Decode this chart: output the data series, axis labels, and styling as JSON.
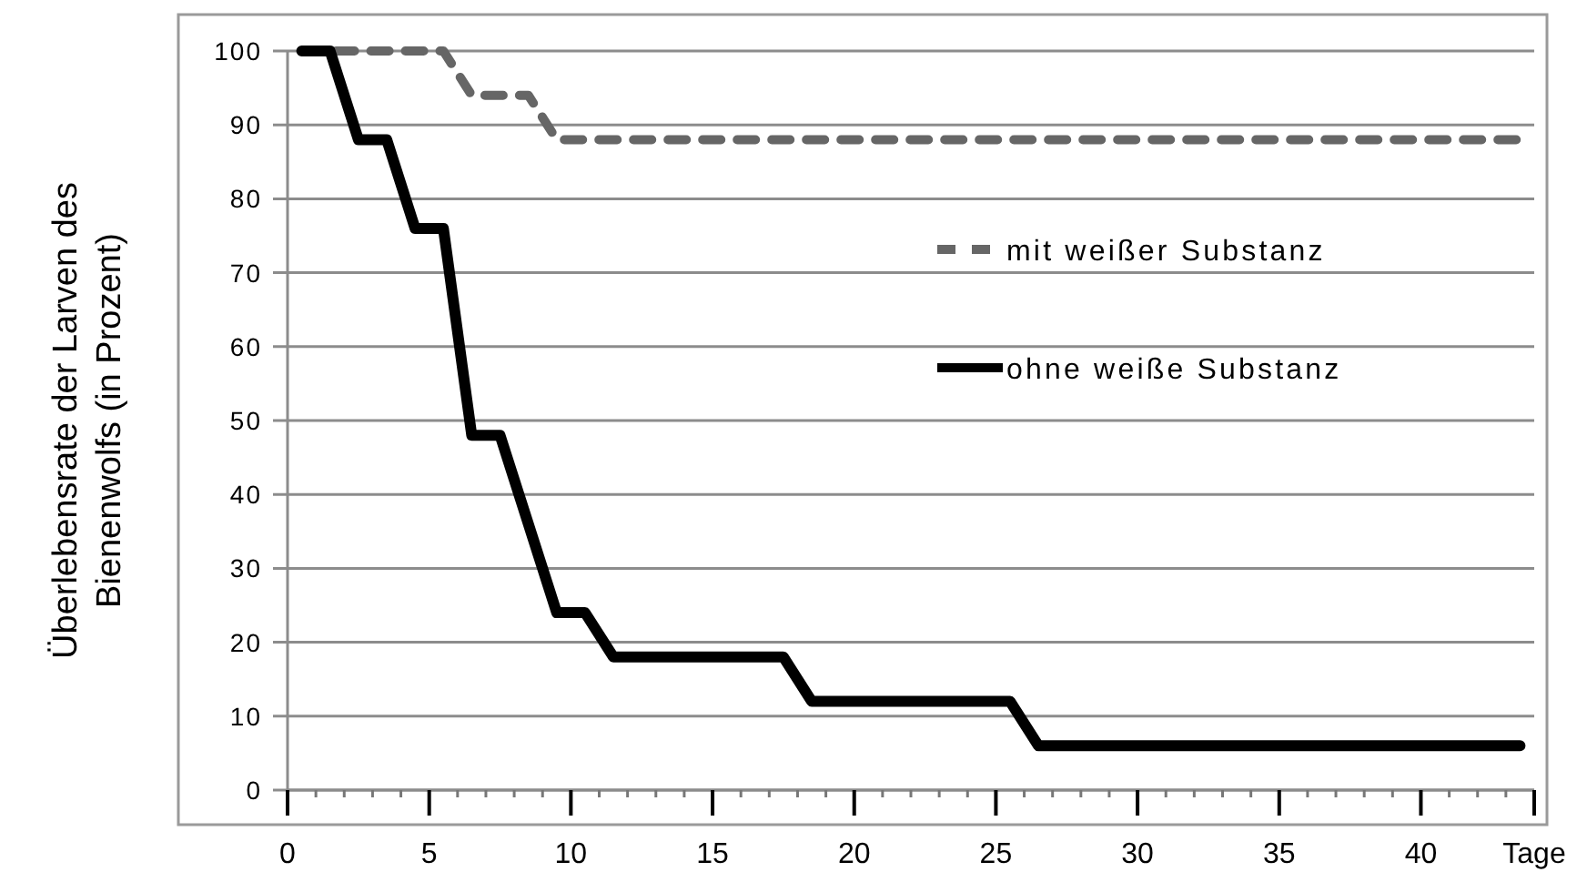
{
  "chart_data": {
    "type": "line",
    "ylabel": "Überlebensrate der Larven des\nBienenwolfs (in Prozent)",
    "xlim": [
      0,
      44
    ],
    "xticks": [
      0,
      {
        "value": 1,
        "label": null
      },
      {
        "value": 2,
        "label": null
      },
      {
        "value": 3,
        "label": null
      },
      {
        "value": 4,
        "label": null
      },
      5,
      {
        "value": 6,
        "label": null
      },
      {
        "value": 7,
        "label": null
      },
      {
        "value": 8,
        "label": null
      },
      {
        "value": 9,
        "label": null
      },
      10,
      {
        "value": 11,
        "label": null
      },
      {
        "value": 12,
        "label": null
      },
      {
        "value": 13,
        "label": null
      },
      {
        "value": 14,
        "label": null
      },
      15,
      {
        "value": 16,
        "label": null
      },
      {
        "value": 17,
        "label": null
      },
      {
        "value": 18,
        "label": null
      },
      {
        "value": 19,
        "label": null
      },
      20,
      {
        "value": 21,
        "label": null
      },
      {
        "value": 22,
        "label": null
      },
      {
        "value": 23,
        "label": null
      },
      {
        "value": 24,
        "label": null
      },
      25,
      {
        "value": 26,
        "label": null
      },
      {
        "value": 27,
        "label": null
      },
      {
        "value": 28,
        "label": null
      },
      {
        "value": 29,
        "label": null
      },
      30,
      {
        "value": 31,
        "label": null
      },
      {
        "value": 32,
        "label": null
      },
      {
        "value": 33,
        "label": null
      },
      {
        "value": 34,
        "label": null
      },
      35,
      {
        "value": 36,
        "label": null
      },
      {
        "value": 37,
        "label": null
      },
      {
        "value": 38,
        "label": null
      },
      {
        "value": 39,
        "label": null
      },
      40,
      {
        "value": 41,
        "label": null
      },
      {
        "value": 42,
        "label": null
      },
      {
        "value": 43,
        "label": null
      },
      {
        "value": 44,
        "label": "Tage"
      }
    ],
    "ylim": [
      0,
      100
    ],
    "yticks": [
      0,
      10,
      20,
      30,
      40,
      50,
      60,
      70,
      80,
      90,
      100
    ],
    "grid": "y",
    "legend": "right",
    "marker": "none",
    "series": [
      {
        "name": "mit weißer Substanz",
        "color": "#666666",
        "line_style": "dashed",
        "x": [
          0.5,
          5.5,
          6.5,
          8.5,
          9.5,
          43.5
        ],
        "values": [
          100,
          100,
          94,
          94,
          88,
          88
        ]
      },
      {
        "name": "ohne weiße Substanz",
        "color": "#000000",
        "line_style": "solid",
        "x": [
          0.5,
          1.5,
          2.5,
          3.5,
          4.5,
          5.5,
          6.5,
          7.5,
          9.5,
          10.5,
          11.5,
          17.5,
          18.5,
          25.5,
          26.5,
          43.5
        ],
        "values": [
          100,
          100,
          88,
          88,
          76,
          76,
          48,
          48,
          24,
          24,
          18,
          18,
          12,
          12,
          6,
          6
        ]
      }
    ]
  }
}
